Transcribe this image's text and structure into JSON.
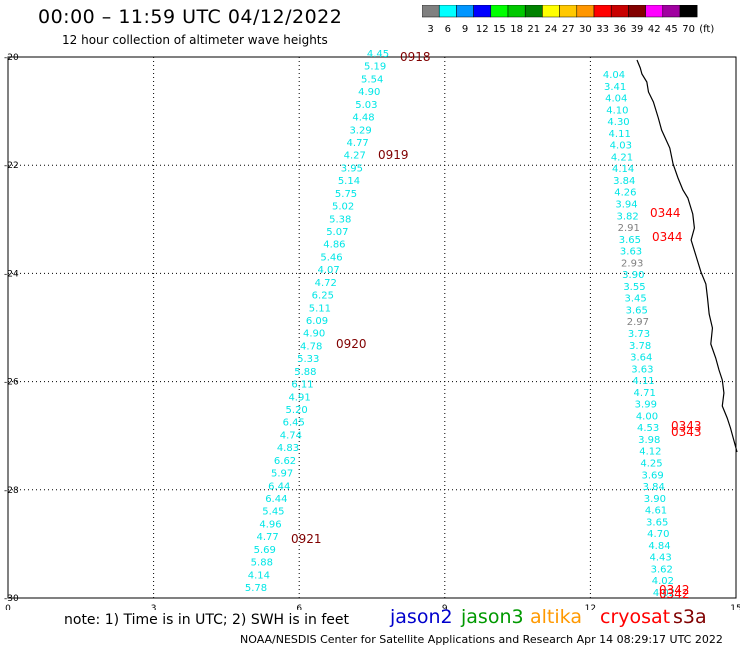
{
  "header": {
    "title": "00:00 – 11:59 UTC 04/12/2022",
    "subtitle": "12 hour collection of altimeter wave heights"
  },
  "legend": {
    "unit": "(ft)",
    "bins": [
      {
        "label": "3",
        "color": "#808080"
      },
      {
        "label": "6",
        "color": "#00ffff"
      },
      {
        "label": "9",
        "color": "#0096ff"
      },
      {
        "label": "12",
        "color": "#0000ff"
      },
      {
        "label": "15",
        "color": "#00ff00"
      },
      {
        "label": "18",
        "color": "#00c800"
      },
      {
        "label": "21",
        "color": "#008200"
      },
      {
        "label": "24",
        "color": "#ffff00"
      },
      {
        "label": "27",
        "color": "#ffc800"
      },
      {
        "label": "30",
        "color": "#ff9600"
      },
      {
        "label": "33",
        "color": "#ff0000"
      },
      {
        "label": "36",
        "color": "#c80000"
      },
      {
        "label": "39",
        "color": "#820000"
      },
      {
        "label": "42",
        "color": "#ff00ff"
      },
      {
        "label": "45",
        "color": "#a000a0"
      },
      {
        "label": "70",
        "color": "#000000"
      }
    ]
  },
  "axes": {
    "x_ticks": [
      "0",
      "3",
      "6",
      "9",
      "12",
      "15"
    ],
    "y_ticks": [
      "-20",
      "-22",
      "-24",
      "-26",
      "-28",
      "-30"
    ],
    "x_range": [
      0,
      15
    ],
    "y_range": [
      -20,
      -30
    ]
  },
  "tracks": {
    "track1": {
      "color": "#00e6e6",
      "values": [
        "4.45",
        "5.19",
        "5.54",
        "4.90",
        "5.03",
        "4.48",
        "3.29",
        "4.77",
        "4.27",
        "3.95",
        "5.14",
        "5.75",
        "5.02",
        "5.38",
        "5.07",
        "4.86",
        "5.46",
        "4.07",
        "4.72",
        "6.25",
        "5.11",
        "6.09",
        "4.90",
        "4.78",
        "5.33",
        "5.88",
        "6.11",
        "4.91",
        "5.20",
        "6.45",
        "4.74",
        "4.83",
        "6.62",
        "5.97",
        "6.44",
        "6.44",
        "5.45",
        "4.96",
        "4.77",
        "5.69",
        "5.88",
        "4.14",
        "5.78"
      ],
      "times": [
        "0918",
        "0919",
        "0920",
        "0921"
      ],
      "time_color": "#800000"
    },
    "track2": {
      "color": "#00e6e6",
      "gray_color": "#808080",
      "values": [
        "4.04",
        "3.41",
        "4.04",
        "4.10",
        "4.30",
        "4.11",
        "4.03",
        "4.21",
        "4.14",
        "3.84",
        "4.26",
        "3.94",
        "3.82",
        "2.91",
        "3.65",
        "3.63",
        "2.93",
        "3.90",
        "3.55",
        "3.45",
        "3.65",
        "2.97",
        "3.73",
        "3.78",
        "3.64",
        "3.63",
        "4.11",
        "4.71",
        "3.99",
        "4.00",
        "4.53",
        "3.98",
        "4.12",
        "4.25",
        "3.69",
        "3.84",
        "3.90",
        "4.61",
        "3.65",
        "4.70",
        "4.84",
        "4.43",
        "3.62",
        "4.02",
        "4.02"
      ],
      "times": [
        "0344",
        "0344",
        "0343",
        "0343",
        "0342",
        "0342"
      ],
      "time_color": "#ff0000"
    }
  },
  "footer": {
    "note": "note: 1) Time is in UTC; 2) SWH is in feet",
    "satellites": [
      {
        "label": "jason2",
        "color": "#0000cc"
      },
      {
        "label": "jason3",
        "color": "#009900"
      },
      {
        "label": "altika",
        "color": "#ff9900"
      },
      {
        "label": "cryosat",
        "color": "#ff0000"
      },
      {
        "label": "s3a",
        "color": "#800000"
      }
    ],
    "credit": "NOAA/NESDIS Center for Satellite Applications and Research    Apr 14 08:29:17 UTC 2022"
  }
}
